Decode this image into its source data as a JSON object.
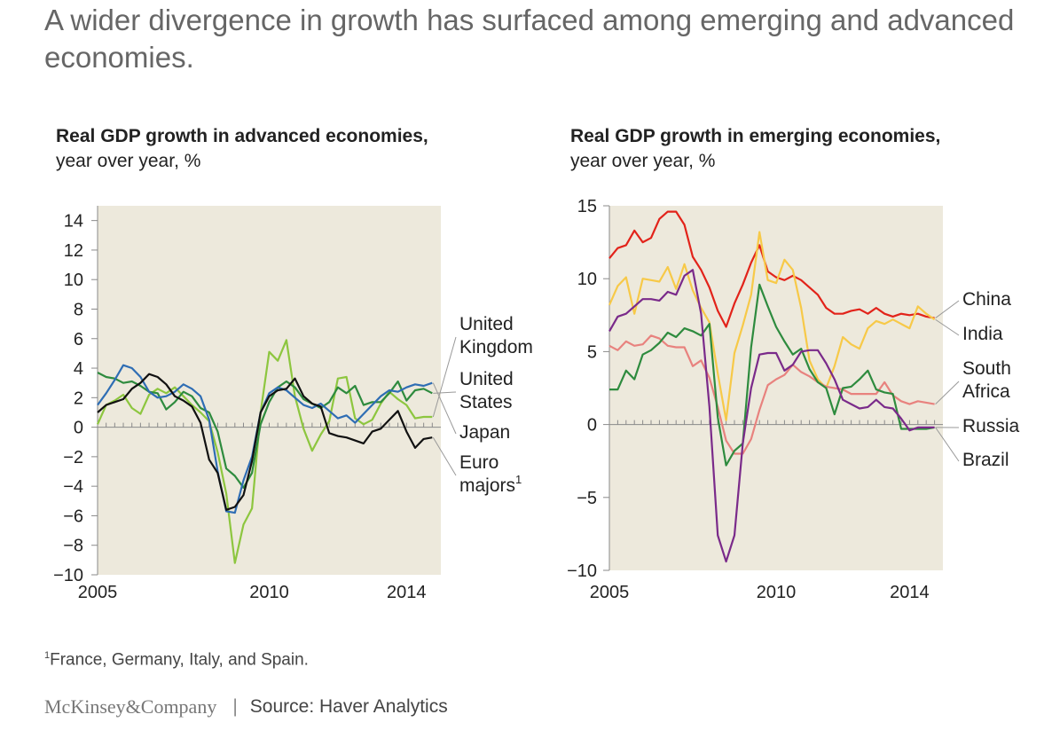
{
  "headline": "A wider divergence in growth has surfaced among emerging and advanced economies.",
  "footnote": {
    "mark": "1",
    "text": "France, Germany, Italy, and Spain."
  },
  "footer": {
    "brand": "McKinsey&Company",
    "separator": "|",
    "source": "Source: Haver Analytics"
  },
  "chart_data": [
    {
      "type": "line",
      "title": "Real GDP growth in advanced economies,",
      "subtitle": "year over year, %",
      "xlim": [
        2005,
        2015
      ],
      "ylim": [
        -10,
        15
      ],
      "x_ticks": [
        2005,
        2010,
        2014
      ],
      "y_ticks": [
        14,
        12,
        10,
        8,
        6,
        4,
        2,
        0,
        -2,
        -4,
        -6,
        -8,
        -10
      ],
      "y_tick_labels": [
        "14",
        "12",
        "10",
        "8",
        "6",
        "4",
        "2",
        "0",
        "−2",
        "−4",
        "−6",
        "−8",
        "−10"
      ],
      "grid": false,
      "series": [
        {
          "name": "United Kingdom",
          "color": "#8dc63f",
          "x": [
            2005.0,
            2005.25,
            2005.5,
            2005.75,
            2006.0,
            2006.25,
            2006.5,
            2006.75,
            2007.0,
            2007.25,
            2007.5,
            2007.75,
            2008.0,
            2008.25,
            2008.5,
            2008.75,
            2009.0,
            2009.25,
            2009.5,
            2009.75,
            2010.0,
            2010.25,
            2010.5,
            2010.75,
            2011.0,
            2011.25,
            2011.5,
            2011.75,
            2012.0,
            2012.25,
            2012.5,
            2012.75,
            2013.0,
            2013.25,
            2013.5,
            2013.75,
            2014.0,
            2014.25,
            2014.5,
            2014.75
          ],
          "y": [
            0.2,
            1.5,
            1.8,
            2.2,
            1.3,
            0.9,
            2.2,
            2.6,
            2.3,
            2.7,
            2.1,
            1.5,
            1.0,
            0.4,
            -1.7,
            -4.5,
            -9.2,
            -6.6,
            -5.5,
            1.0,
            5.1,
            4.5,
            5.9,
            2.1,
            -0.1,
            -1.6,
            -0.5,
            0.4,
            3.3,
            3.4,
            0.6,
            0.2,
            0.5,
            1.6,
            2.4,
            1.9,
            1.5,
            0.6,
            0.7,
            0.7
          ]
        },
        {
          "name": "United States",
          "color": "#2e8b3e",
          "x": [
            2005.0,
            2005.25,
            2005.5,
            2005.75,
            2006.0,
            2006.25,
            2006.5,
            2006.75,
            2007.0,
            2007.25,
            2007.5,
            2007.75,
            2008.0,
            2008.25,
            2008.5,
            2008.75,
            2009.0,
            2009.25,
            2009.5,
            2009.75,
            2010.0,
            2010.25,
            2010.5,
            2010.75,
            2011.0,
            2011.25,
            2011.5,
            2011.75,
            2012.0,
            2012.25,
            2012.5,
            2012.75,
            2013.0,
            2013.25,
            2013.5,
            2013.75,
            2014.0,
            2014.25,
            2014.5,
            2014.75
          ],
          "y": [
            3.7,
            3.4,
            3.3,
            3.0,
            3.1,
            2.8,
            2.4,
            2.3,
            1.2,
            1.7,
            2.4,
            2.1,
            1.3,
            1.0,
            -0.3,
            -2.8,
            -3.3,
            -4.1,
            -3.1,
            0.2,
            1.7,
            2.7,
            3.1,
            2.7,
            1.9,
            1.6,
            1.3,
            1.7,
            2.7,
            2.3,
            2.8,
            1.5,
            1.7,
            1.7,
            2.3,
            3.1,
            1.8,
            2.5,
            2.6,
            2.3
          ]
        },
        {
          "name": "Japan",
          "color": "#2e6db4",
          "x": [
            2005.0,
            2005.25,
            2005.5,
            2005.75,
            2006.0,
            2006.25,
            2006.5,
            2006.75,
            2007.0,
            2007.25,
            2007.5,
            2007.75,
            2008.0,
            2008.25,
            2008.5,
            2008.75,
            2009.0,
            2009.25,
            2009.5,
            2009.75,
            2010.0,
            2010.25,
            2010.5,
            2010.75,
            2011.0,
            2011.25,
            2011.5,
            2011.75,
            2012.0,
            2012.25,
            2012.5,
            2012.75,
            2013.0,
            2013.25,
            2013.5,
            2013.75,
            2014.0,
            2014.25,
            2014.5,
            2014.75
          ],
          "y": [
            1.5,
            2.3,
            3.2,
            4.2,
            4.0,
            3.4,
            2.4,
            2.0,
            2.1,
            2.4,
            2.9,
            2.6,
            2.1,
            0.5,
            -3.0,
            -5.7,
            -5.8,
            -3.6,
            -2.0,
            1.0,
            2.3,
            2.7,
            2.5,
            2.0,
            1.5,
            1.3,
            1.6,
            1.1,
            0.6,
            0.8,
            0.3,
            0.9,
            1.5,
            2.1,
            2.5,
            2.4,
            2.7,
            2.9,
            2.8,
            3.0
          ]
        },
        {
          "name": "Euro majors",
          "name_mark": "1",
          "color": "#111111",
          "x": [
            2005.0,
            2005.25,
            2005.5,
            2005.75,
            2006.0,
            2006.25,
            2006.5,
            2006.75,
            2007.0,
            2007.25,
            2007.5,
            2007.75,
            2008.0,
            2008.25,
            2008.5,
            2008.75,
            2009.0,
            2009.25,
            2009.5,
            2009.75,
            2010.0,
            2010.25,
            2010.5,
            2010.75,
            2011.0,
            2011.25,
            2011.5,
            2011.75,
            2012.0,
            2012.25,
            2012.5,
            2012.75,
            2013.0,
            2013.25,
            2013.5,
            2013.75,
            2014.0,
            2014.25,
            2014.5,
            2014.75
          ],
          "y": [
            1.0,
            1.5,
            1.7,
            1.9,
            2.6,
            3.0,
            3.6,
            3.4,
            2.9,
            2.1,
            1.8,
            1.4,
            0.3,
            -2.2,
            -3.1,
            -5.6,
            -5.4,
            -4.6,
            -2.3,
            1.0,
            2.1,
            2.5,
            2.6,
            3.3,
            2.1,
            1.6,
            1.4,
            -0.4,
            -0.6,
            -0.7,
            -0.9,
            -1.1,
            -0.3,
            -0.1,
            0.5,
            1.1,
            -0.3,
            -1.4,
            -0.8,
            -0.7
          ]
        }
      ],
      "labels": [
        {
          "series": "United Kingdom",
          "lines": [
            "United",
            "Kingdom"
          ]
        },
        {
          "series": "United States",
          "lines": [
            "United",
            "States"
          ]
        },
        {
          "series": "Japan",
          "lines": [
            "Japan"
          ]
        },
        {
          "series": "Euro majors",
          "lines": [
            "Euro",
            "majors"
          ],
          "mark": "1"
        }
      ]
    },
    {
      "type": "line",
      "title": "Real GDP growth in emerging economies,",
      "subtitle": "year over year, %",
      "xlim": [
        2005,
        2015
      ],
      "ylim": [
        -10,
        15
      ],
      "x_ticks": [
        2005,
        2010,
        2014
      ],
      "y_ticks": [
        15,
        10,
        5,
        0,
        -5,
        -10
      ],
      "y_tick_labels": [
        "15",
        "10",
        "5",
        "0",
        "−5",
        "−10"
      ],
      "grid": false,
      "series": [
        {
          "name": "China",
          "color": "#e2231a",
          "x": [
            2005.0,
            2005.25,
            2005.5,
            2005.75,
            2006.0,
            2006.25,
            2006.5,
            2006.75,
            2007.0,
            2007.25,
            2007.5,
            2007.75,
            2008.0,
            2008.25,
            2008.5,
            2008.75,
            2009.0,
            2009.25,
            2009.5,
            2009.75,
            2010.0,
            2010.25,
            2010.5,
            2010.75,
            2011.0,
            2011.25,
            2011.5,
            2011.75,
            2012.0,
            2012.25,
            2012.5,
            2012.75,
            2013.0,
            2013.25,
            2013.5,
            2013.75,
            2014.0,
            2014.25,
            2014.5,
            2014.75
          ],
          "y": [
            11.4,
            12.1,
            12.3,
            13.3,
            12.5,
            12.8,
            14.1,
            14.6,
            14.6,
            13.7,
            11.5,
            10.6,
            9.4,
            7.8,
            6.7,
            8.3,
            9.6,
            11.1,
            12.3,
            10.5,
            10.1,
            9.9,
            10.2,
            9.9,
            9.4,
            8.9,
            8.0,
            7.6,
            7.6,
            7.8,
            7.9,
            7.6,
            8.0,
            7.6,
            7.4,
            7.6,
            7.5,
            7.6,
            7.4,
            7.3
          ]
        },
        {
          "name": "India",
          "color": "#f7c948",
          "x": [
            2005.0,
            2005.25,
            2005.5,
            2005.75,
            2006.0,
            2006.25,
            2006.5,
            2006.75,
            2007.0,
            2007.25,
            2007.5,
            2007.75,
            2008.0,
            2008.25,
            2008.5,
            2008.75,
            2009.0,
            2009.25,
            2009.5,
            2009.75,
            2010.0,
            2010.25,
            2010.5,
            2010.75,
            2011.0,
            2011.25,
            2011.5,
            2011.75,
            2012.0,
            2012.25,
            2012.5,
            2012.75,
            2013.0,
            2013.25,
            2013.5,
            2013.75,
            2014.0,
            2014.25,
            2014.5,
            2014.75
          ],
          "y": [
            8.2,
            9.5,
            10.1,
            7.6,
            10.0,
            9.9,
            9.8,
            10.8,
            9.3,
            11.0,
            9.2,
            8.0,
            7.0,
            3.5,
            0.3,
            4.9,
            6.8,
            8.9,
            13.2,
            9.9,
            9.7,
            11.3,
            10.6,
            8.0,
            4.4,
            3.1,
            2.5,
            4.0,
            6.0,
            5.5,
            5.2,
            6.6,
            7.1,
            6.9,
            7.2,
            6.9,
            6.6,
            8.1,
            7.6,
            7.2
          ]
        },
        {
          "name": "South Africa",
          "color": "#e8827e",
          "x": [
            2005.0,
            2005.25,
            2005.5,
            2005.75,
            2006.0,
            2006.25,
            2006.5,
            2006.75,
            2007.0,
            2007.25,
            2007.5,
            2007.75,
            2008.0,
            2008.25,
            2008.5,
            2008.75,
            2009.0,
            2009.25,
            2009.5,
            2009.75,
            2010.0,
            2010.25,
            2010.5,
            2010.75,
            2011.0,
            2011.25,
            2011.5,
            2011.75,
            2012.0,
            2012.25,
            2012.5,
            2012.75,
            2013.0,
            2013.25,
            2013.5,
            2013.75,
            2014.0,
            2014.25,
            2014.5,
            2014.75
          ],
          "y": [
            5.4,
            5.1,
            5.7,
            5.4,
            5.5,
            6.1,
            5.9,
            5.4,
            5.3,
            5.3,
            4.0,
            4.4,
            3.2,
            1.2,
            -1.1,
            -2.0,
            -2.0,
            -1.0,
            1.0,
            2.7,
            3.1,
            3.4,
            4.1,
            3.6,
            3.3,
            2.9,
            2.6,
            2.5,
            2.4,
            2.1,
            2.1,
            2.1,
            2.1,
            2.9,
            2.0,
            1.6,
            1.4,
            1.6,
            1.5,
            1.4
          ]
        },
        {
          "name": "Russia",
          "color": "#2e8b3e",
          "x": [
            2005.0,
            2005.25,
            2005.5,
            2005.75,
            2006.0,
            2006.25,
            2006.5,
            2006.75,
            2007.0,
            2007.25,
            2007.5,
            2007.75,
            2008.0,
            2008.25,
            2008.5,
            2008.75,
            2009.0,
            2009.25,
            2009.5,
            2009.75,
            2010.0,
            2010.25,
            2010.5,
            2010.75,
            2011.0,
            2011.25,
            2011.5,
            2011.75,
            2012.0,
            2012.25,
            2012.5,
            2012.75,
            2013.0,
            2013.25,
            2013.5,
            2013.75,
            2014.0,
            2014.25,
            2014.5,
            2014.75
          ],
          "y": [
            2.4,
            2.4,
            3.7,
            3.1,
            4.8,
            5.1,
            5.6,
            6.3,
            6.0,
            6.6,
            6.4,
            6.1,
            6.9,
            0.5,
            -2.8,
            -1.8,
            -1.3,
            5.3,
            9.6,
            8.1,
            6.7,
            5.7,
            4.8,
            5.2,
            3.8,
            2.9,
            2.5,
            0.7,
            2.5,
            2.6,
            3.1,
            3.7,
            2.4,
            2.2,
            2.1,
            -0.3,
            -0.3,
            -0.3,
            -0.3,
            -0.2
          ]
        },
        {
          "name": "Brazil",
          "color": "#7a2a8a",
          "x": [
            2005.0,
            2005.25,
            2005.5,
            2005.75,
            2006.0,
            2006.25,
            2006.5,
            2006.75,
            2007.0,
            2007.25,
            2007.5,
            2007.75,
            2008.0,
            2008.25,
            2008.5,
            2008.75,
            2009.0,
            2009.25,
            2009.5,
            2009.75,
            2010.0,
            2010.25,
            2010.5,
            2010.75,
            2011.0,
            2011.25,
            2011.5,
            2011.75,
            2012.0,
            2012.25,
            2012.5,
            2012.75,
            2013.0,
            2013.25,
            2013.5,
            2013.75,
            2014.0,
            2014.25,
            2014.5,
            2014.75
          ],
          "y": [
            6.4,
            7.4,
            7.6,
            8.1,
            8.6,
            8.6,
            8.5,
            9.1,
            8.9,
            10.2,
            10.6,
            7.6,
            1.2,
            -7.6,
            -9.4,
            -7.6,
            -1.3,
            2.5,
            4.8,
            4.9,
            4.9,
            3.7,
            4.1,
            5.0,
            5.1,
            5.1,
            4.2,
            3.1,
            1.7,
            1.4,
            1.1,
            1.2,
            1.7,
            1.2,
            1.1,
            0.4,
            -0.4,
            -0.2,
            -0.2,
            -0.2
          ]
        }
      ],
      "labels": [
        {
          "series": "China",
          "lines": [
            "China"
          ]
        },
        {
          "series": "India",
          "lines": [
            "India"
          ]
        },
        {
          "series": "South Africa",
          "lines": [
            "South",
            "Africa"
          ]
        },
        {
          "series": "Russia",
          "lines": [
            "Russia"
          ]
        },
        {
          "series": "Brazil",
          "lines": [
            "Brazil"
          ]
        }
      ]
    }
  ]
}
